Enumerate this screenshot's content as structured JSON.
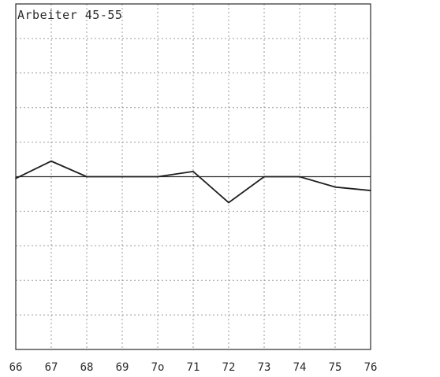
{
  "chart_data": {
    "type": "line",
    "title": "Arbeiter 45-55",
    "xlabel": "",
    "ylabel": "",
    "categories": [
      "66",
      "67",
      "68",
      "69",
      "7o",
      "71",
      "72",
      "73",
      "74",
      "75",
      "76"
    ],
    "x": [
      66,
      67,
      68,
      69,
      70,
      71,
      72,
      73,
      74,
      75,
      76
    ],
    "series": [
      {
        "values": [
          -0.1,
          0.9,
          0.0,
          0.0,
          0.0,
          0.3,
          -1.5,
          0.0,
          0.0,
          -0.6,
          -0.8
        ]
      }
    ],
    "ylim": [
      -10,
      10
    ],
    "baseline": 0,
    "grid": true,
    "legend": "none",
    "colors": {
      "line": "#1f1f1f",
      "grid": "#9a9a9a",
      "frame": "#2a2a2a"
    }
  }
}
